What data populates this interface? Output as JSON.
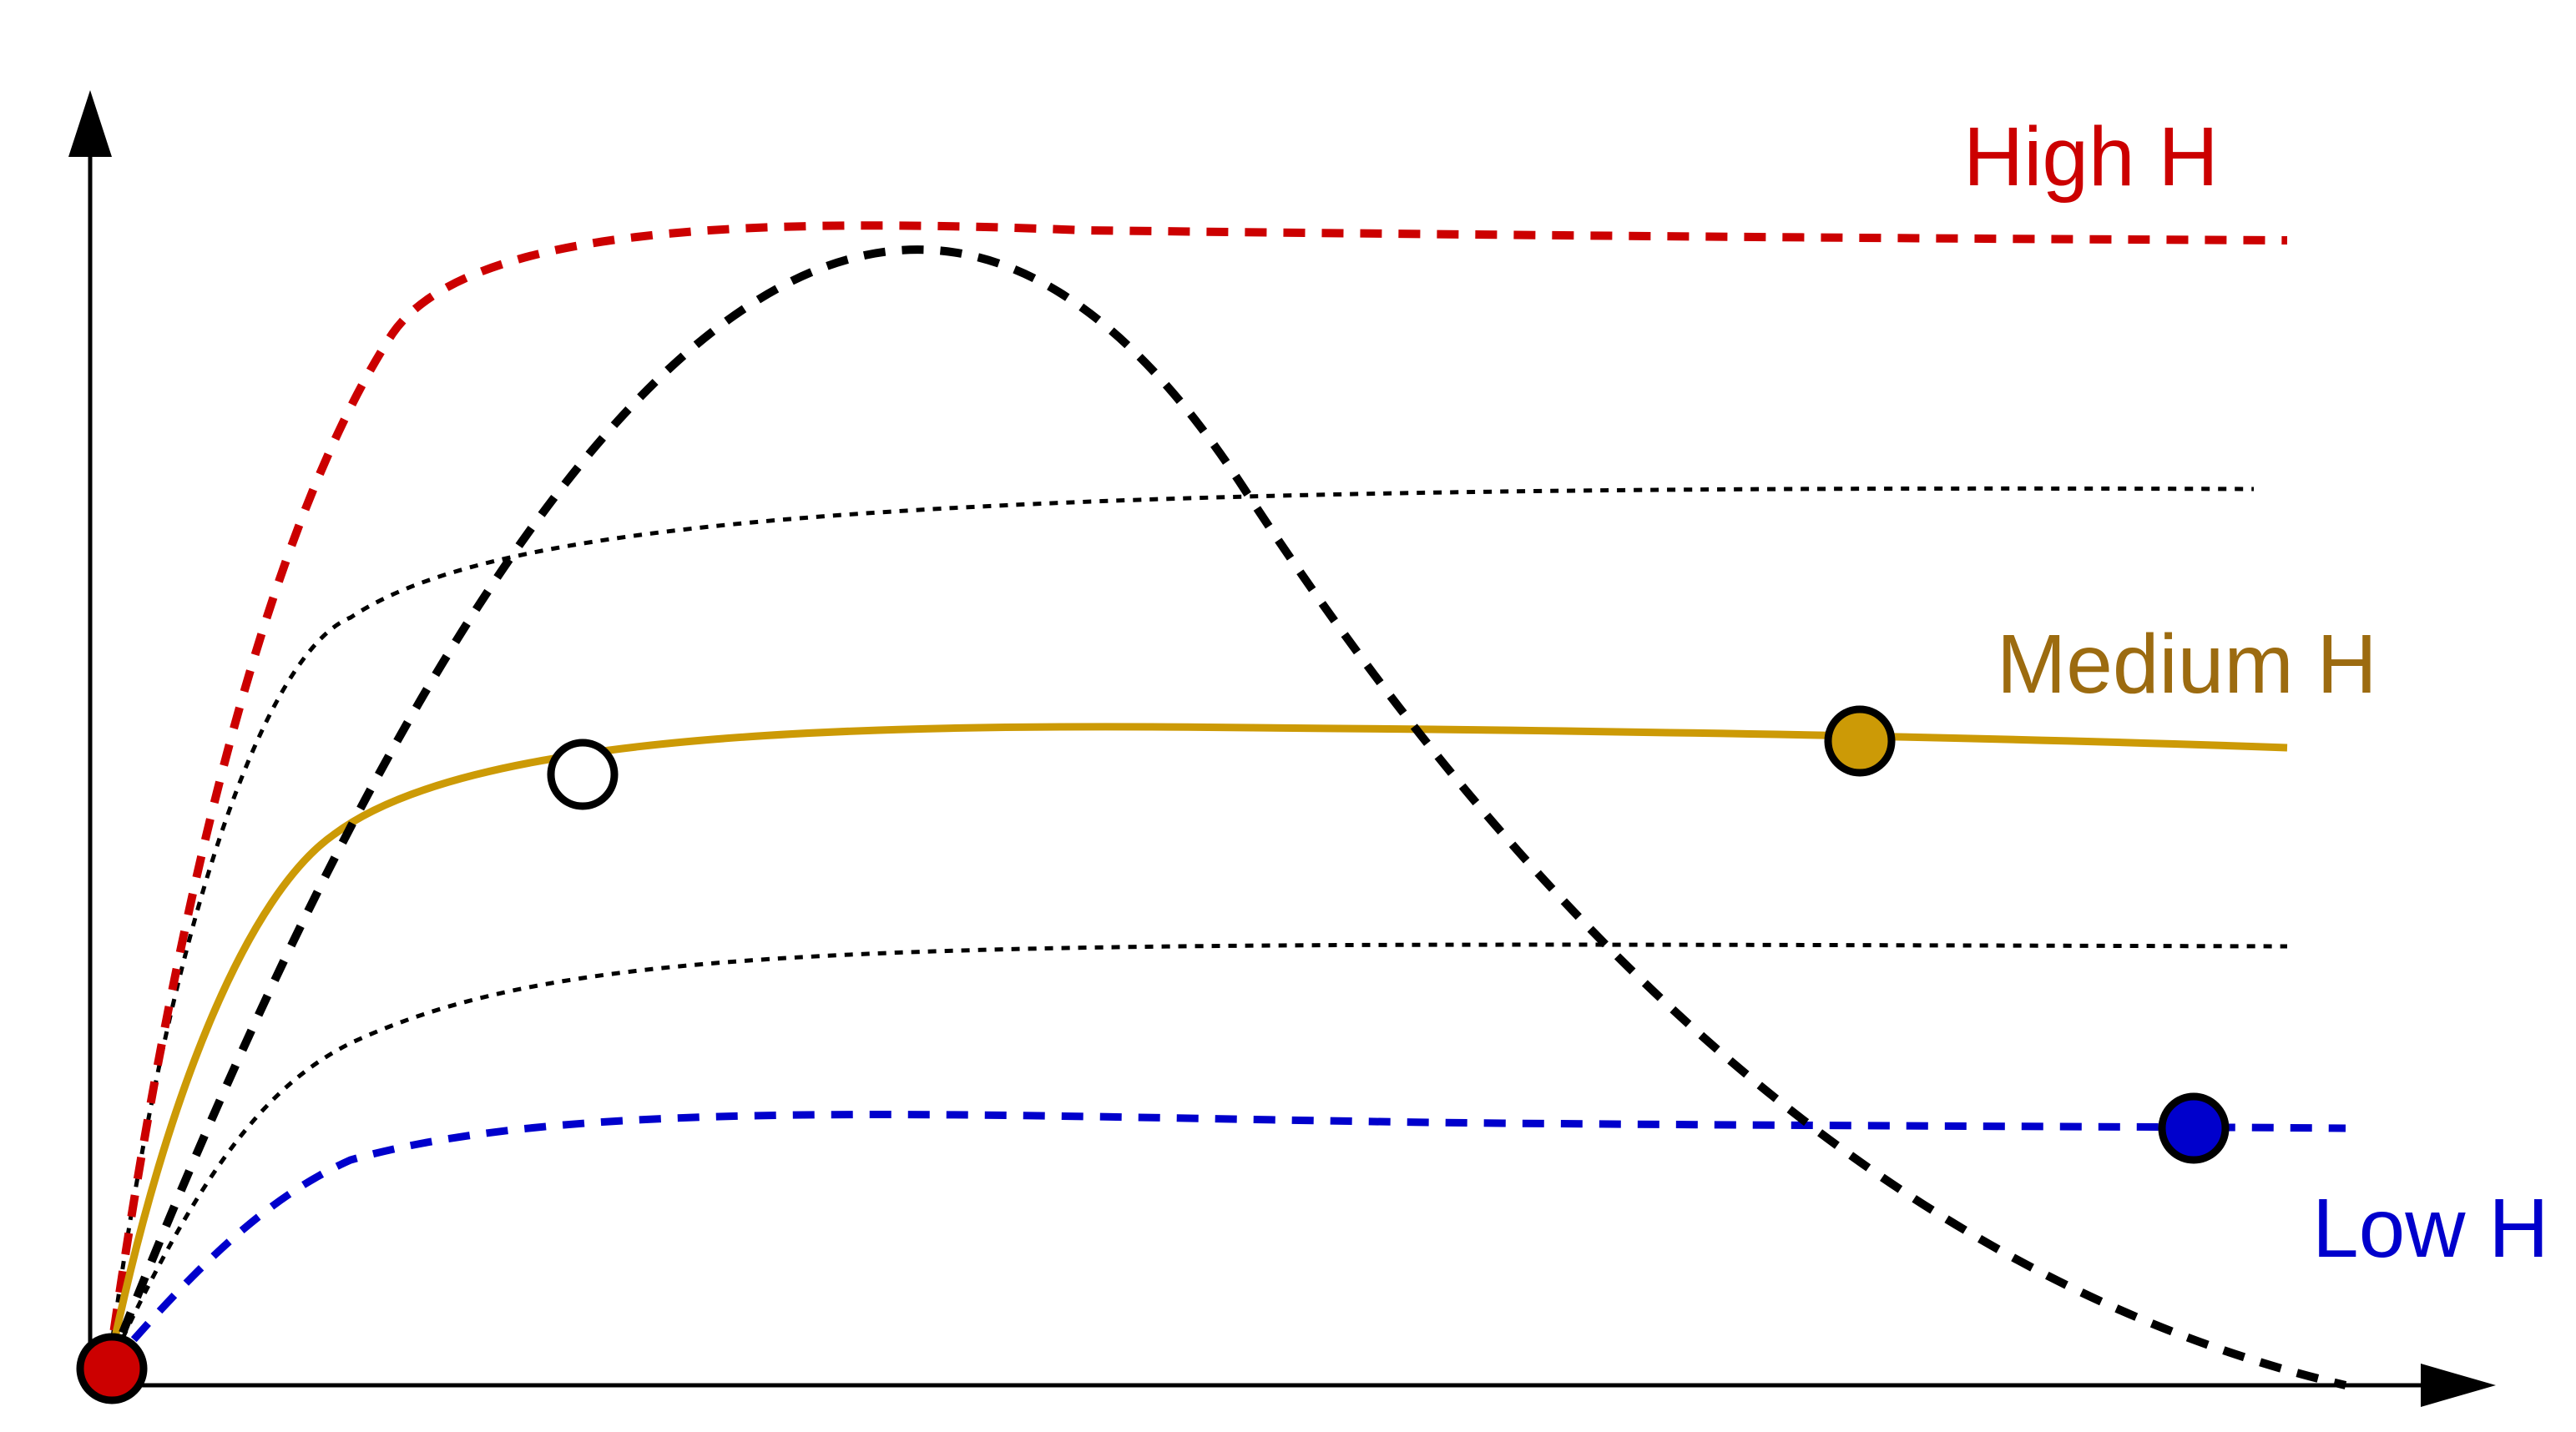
{
  "colors": {
    "high": "#cc0000",
    "medium": "#cc9a06",
    "medium_label": "#9c6b10",
    "low": "#0000cc",
    "axis": "#000000",
    "background": "#ffffff"
  },
  "labels": {
    "high": "High H",
    "medium": "Medium H",
    "low": "Low H"
  },
  "curves": [
    {
      "name": "high-h-curve",
      "style": "dashed",
      "color_key": "high"
    },
    {
      "name": "medium-h-curve",
      "style": "solid",
      "color_key": "medium"
    },
    {
      "name": "low-h-curve",
      "style": "dashed",
      "color_key": "low"
    },
    {
      "name": "upper-reference-curve",
      "style": "dotted",
      "color_key": "axis"
    },
    {
      "name": "lower-reference-curve",
      "style": "dotted",
      "color_key": "axis"
    },
    {
      "name": "parabola-curve",
      "style": "dashed",
      "color_key": "axis"
    }
  ],
  "markers": [
    {
      "name": "origin-marker",
      "fill_key": "high"
    },
    {
      "name": "unstable-intersection-marker",
      "fill_key": "background"
    },
    {
      "name": "medium-stable-marker",
      "fill_key": "medium"
    },
    {
      "name": "low-stable-marker",
      "fill_key": "low"
    }
  ]
}
